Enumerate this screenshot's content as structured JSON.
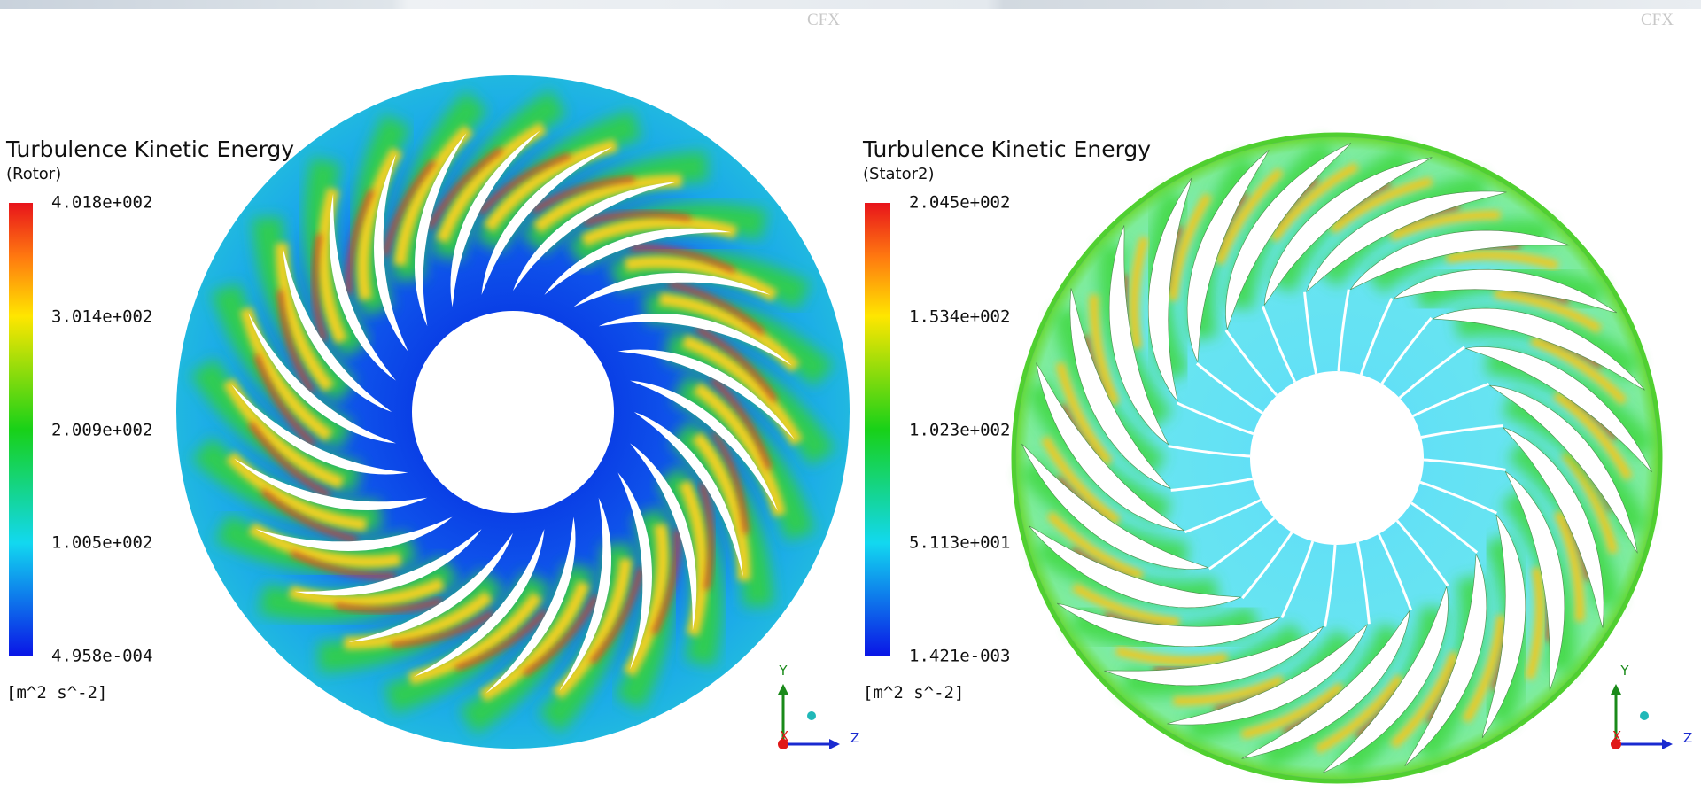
{
  "watermarks": [
    "CFX",
    "CFX"
  ],
  "panels": [
    {
      "title": "Turbulence Kinetic Energy",
      "subtitle": "(Rotor)",
      "legend_labels": [
        "4.018e+002",
        "3.014e+002",
        "2.009e+002",
        "1.005e+002",
        "4.958e-004"
      ],
      "units": "[m^2 s^-2]",
      "axes": {
        "y": "Y",
        "x": "X",
        "z": "Z"
      }
    },
    {
      "title": "Turbulence Kinetic Energy",
      "subtitle": "(Stator2)",
      "legend_labels": [
        "2.045e+002",
        "1.534e+002",
        "1.023e+002",
        "5.113e+001",
        "1.421e-003"
      ],
      "units": "[m^2 s^-2]",
      "axes": {
        "y": "Y",
        "x": "X",
        "z": "Z"
      }
    }
  ]
}
